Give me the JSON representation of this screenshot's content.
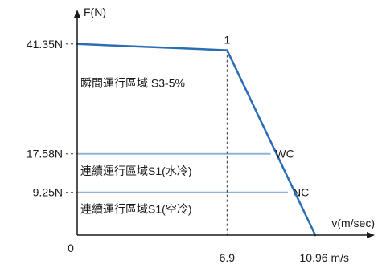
{
  "chart_data": {
    "type": "line",
    "ylabel": "F(N)",
    "xlabel": "v(m/sec)",
    "origin_label": "0",
    "xlim": [
      0,
      10.96
    ],
    "ylim": [
      0,
      46
    ],
    "y_ticks": [
      {
        "value": 41.35,
        "label": "41.35N"
      },
      {
        "value": 17.58,
        "label": "17.58N"
      },
      {
        "value": 9.25,
        "label": "9.25N"
      }
    ],
    "x_ticks": [
      {
        "value": 6.9,
        "label": "6.9"
      },
      {
        "value": 10.96,
        "label": "10.96 m/s"
      }
    ],
    "series": [
      {
        "points": [
          {
            "x": 0,
            "y": 41.35
          },
          {
            "x": 6.9,
            "y": 40.0
          },
          {
            "x": 10.96,
            "y": 0
          }
        ]
      }
    ],
    "point_labels": [
      {
        "text": "1",
        "x": 6.9,
        "y": 40.0
      }
    ],
    "horizontal_lines": [
      {
        "label": "WC",
        "y": 17.58,
        "x_end": 8.9
      },
      {
        "label": "NC",
        "y": 9.25,
        "x_end": 9.7
      }
    ],
    "regions": [
      {
        "text": "瞬間運行區域 S3-5%",
        "x": 0.15,
        "y": 32.0
      },
      {
        "text": "連續運行區域S1(水冷)",
        "x": 0.15,
        "y": 13.0
      },
      {
        "text": "連續運行區域S1(空冷)",
        "x": 0.15,
        "y": 4.8
      }
    ],
    "colors": {
      "curve": "#2a6db5",
      "reference_lines": "#8fb4dc",
      "axis": "#1a1a1a",
      "guide": "#333333"
    }
  }
}
